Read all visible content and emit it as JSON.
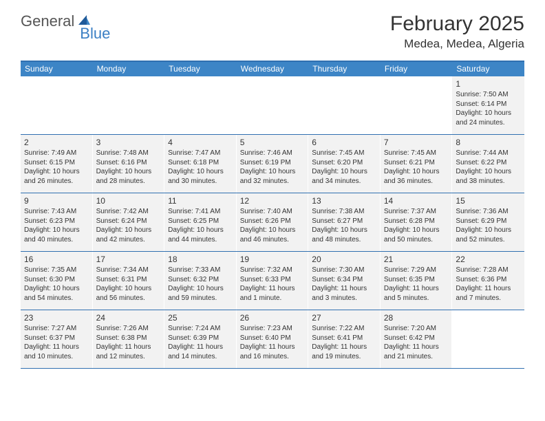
{
  "logo": {
    "part1": "General",
    "part2": "Blue"
  },
  "title": "February 2025",
  "location": "Medea, Medea, Algeria",
  "colors": {
    "header_bg": "#3d85c6",
    "header_text": "#ffffff",
    "border": "#2f6fb0",
    "cell_bg": "#f2f2f2",
    "text": "#333333",
    "logo_gray": "#555555",
    "logo_blue": "#3b7fc4"
  },
  "dayHeaders": [
    "Sunday",
    "Monday",
    "Tuesday",
    "Wednesday",
    "Thursday",
    "Friday",
    "Saturday"
  ],
  "weeks": [
    [
      null,
      null,
      null,
      null,
      null,
      null,
      {
        "n": "1",
        "sr": "7:50 AM",
        "ss": "6:14 PM",
        "dl": "10 hours and 24 minutes."
      }
    ],
    [
      {
        "n": "2",
        "sr": "7:49 AM",
        "ss": "6:15 PM",
        "dl": "10 hours and 26 minutes."
      },
      {
        "n": "3",
        "sr": "7:48 AM",
        "ss": "6:16 PM",
        "dl": "10 hours and 28 minutes."
      },
      {
        "n": "4",
        "sr": "7:47 AM",
        "ss": "6:18 PM",
        "dl": "10 hours and 30 minutes."
      },
      {
        "n": "5",
        "sr": "7:46 AM",
        "ss": "6:19 PM",
        "dl": "10 hours and 32 minutes."
      },
      {
        "n": "6",
        "sr": "7:45 AM",
        "ss": "6:20 PM",
        "dl": "10 hours and 34 minutes."
      },
      {
        "n": "7",
        "sr": "7:45 AM",
        "ss": "6:21 PM",
        "dl": "10 hours and 36 minutes."
      },
      {
        "n": "8",
        "sr": "7:44 AM",
        "ss": "6:22 PM",
        "dl": "10 hours and 38 minutes."
      }
    ],
    [
      {
        "n": "9",
        "sr": "7:43 AM",
        "ss": "6:23 PM",
        "dl": "10 hours and 40 minutes."
      },
      {
        "n": "10",
        "sr": "7:42 AM",
        "ss": "6:24 PM",
        "dl": "10 hours and 42 minutes."
      },
      {
        "n": "11",
        "sr": "7:41 AM",
        "ss": "6:25 PM",
        "dl": "10 hours and 44 minutes."
      },
      {
        "n": "12",
        "sr": "7:40 AM",
        "ss": "6:26 PM",
        "dl": "10 hours and 46 minutes."
      },
      {
        "n": "13",
        "sr": "7:38 AM",
        "ss": "6:27 PM",
        "dl": "10 hours and 48 minutes."
      },
      {
        "n": "14",
        "sr": "7:37 AM",
        "ss": "6:28 PM",
        "dl": "10 hours and 50 minutes."
      },
      {
        "n": "15",
        "sr": "7:36 AM",
        "ss": "6:29 PM",
        "dl": "10 hours and 52 minutes."
      }
    ],
    [
      {
        "n": "16",
        "sr": "7:35 AM",
        "ss": "6:30 PM",
        "dl": "10 hours and 54 minutes."
      },
      {
        "n": "17",
        "sr": "7:34 AM",
        "ss": "6:31 PM",
        "dl": "10 hours and 56 minutes."
      },
      {
        "n": "18",
        "sr": "7:33 AM",
        "ss": "6:32 PM",
        "dl": "10 hours and 59 minutes."
      },
      {
        "n": "19",
        "sr": "7:32 AM",
        "ss": "6:33 PM",
        "dl": "11 hours and 1 minute."
      },
      {
        "n": "20",
        "sr": "7:30 AM",
        "ss": "6:34 PM",
        "dl": "11 hours and 3 minutes."
      },
      {
        "n": "21",
        "sr": "7:29 AM",
        "ss": "6:35 PM",
        "dl": "11 hours and 5 minutes."
      },
      {
        "n": "22",
        "sr": "7:28 AM",
        "ss": "6:36 PM",
        "dl": "11 hours and 7 minutes."
      }
    ],
    [
      {
        "n": "23",
        "sr": "7:27 AM",
        "ss": "6:37 PM",
        "dl": "11 hours and 10 minutes."
      },
      {
        "n": "24",
        "sr": "7:26 AM",
        "ss": "6:38 PM",
        "dl": "11 hours and 12 minutes."
      },
      {
        "n": "25",
        "sr": "7:24 AM",
        "ss": "6:39 PM",
        "dl": "11 hours and 14 minutes."
      },
      {
        "n": "26",
        "sr": "7:23 AM",
        "ss": "6:40 PM",
        "dl": "11 hours and 16 minutes."
      },
      {
        "n": "27",
        "sr": "7:22 AM",
        "ss": "6:41 PM",
        "dl": "11 hours and 19 minutes."
      },
      {
        "n": "28",
        "sr": "7:20 AM",
        "ss": "6:42 PM",
        "dl": "11 hours and 21 minutes."
      },
      null
    ]
  ],
  "labels": {
    "sunrise": "Sunrise: ",
    "sunset": "Sunset: ",
    "daylight": "Daylight: "
  }
}
